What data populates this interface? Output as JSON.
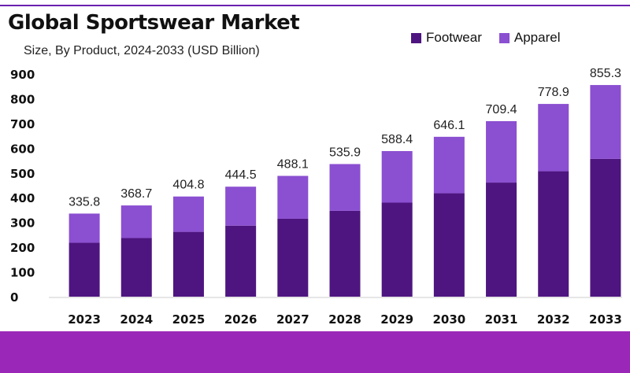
{
  "header": {
    "title": "Global Sportswear Market",
    "subtitle": "Size, By Product, 2024-2033 (USD Billion)"
  },
  "colors": {
    "footwear": "#4e1580",
    "apparel": "#8b4fd1",
    "accent_rule": "#6a1fb0",
    "footer_band": "#9b27b8"
  },
  "chart_data": {
    "type": "bar",
    "stacked": true,
    "categories": [
      "2023",
      "2024",
      "2025",
      "2026",
      "2027",
      "2028",
      "2029",
      "2030",
      "2031",
      "2032",
      "2033"
    ],
    "series": [
      {
        "name": "Footwear",
        "values": [
          218,
          237,
          262,
          287,
          315,
          347,
          380,
          418,
          461,
          507,
          557
        ]
      },
      {
        "name": "Apparel",
        "values": [
          117.8,
          131.7,
          142.8,
          157.5,
          173.1,
          188.9,
          208.4,
          228.1,
          248.4,
          271.9,
          298.3
        ]
      }
    ],
    "totals": [
      "335.8",
      "368.7",
      "404.8",
      "444.5",
      "488.1",
      "535.9",
      "588.4",
      "646.1",
      "709.4",
      "778.9",
      "855.3"
    ],
    "yticks": [
      "0",
      "100",
      "200",
      "300",
      "400",
      "500",
      "600",
      "700",
      "800",
      "900"
    ],
    "ylim": [
      0,
      900
    ],
    "grid": false,
    "legend_position": "top-right"
  }
}
